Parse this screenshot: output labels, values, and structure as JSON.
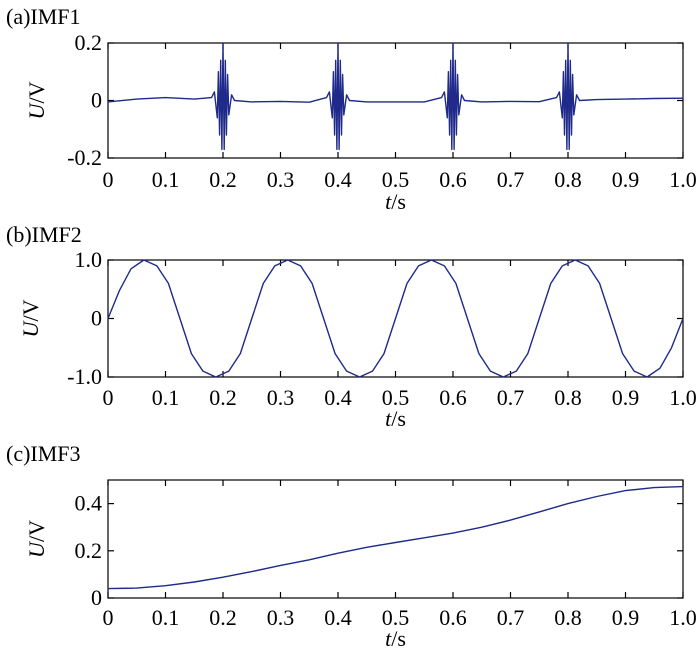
{
  "colors": {
    "line": "#1f2a8a",
    "axis": "#000000"
  },
  "chart_data": [
    {
      "type": "line",
      "panel_label": "(a)IMF1",
      "xlabel_italic": "t",
      "xlabel_unit": "/s",
      "ylabel_italic": "U",
      "ylabel_unit": "/V",
      "xlim": [
        0,
        1.0
      ],
      "ylim": [
        -0.2,
        0.2
      ],
      "xticks": [
        0,
        0.1,
        0.2,
        0.3,
        0.4,
        0.5,
        0.6,
        0.7,
        0.8,
        0.9,
        1.0
      ],
      "xtick_labels": [
        "0",
        "0.1",
        "0.2",
        "0.3",
        "0.4",
        "0.5",
        "0.6",
        "0.7",
        "0.8",
        "0.9",
        "1.0"
      ],
      "yticks": [
        -0.2,
        0,
        0.2
      ],
      "ytick_labels": [
        "-0.2",
        "0",
        "0.2"
      ],
      "grid": false,
      "series": [
        {
          "x": [
            0,
            0.05,
            0.1,
            0.15,
            0.18,
            0.185,
            0.19,
            0.192,
            0.194,
            0.196,
            0.198,
            0.2,
            0.202,
            0.204,
            0.206,
            0.208,
            0.21,
            0.215,
            0.22,
            0.25,
            0.3,
            0.35,
            0.38,
            0.385,
            0.39,
            0.392,
            0.394,
            0.396,
            0.398,
            0.4,
            0.402,
            0.404,
            0.406,
            0.408,
            0.41,
            0.415,
            0.42,
            0.45,
            0.5,
            0.55,
            0.58,
            0.585,
            0.59,
            0.592,
            0.594,
            0.596,
            0.598,
            0.6,
            0.602,
            0.604,
            0.606,
            0.608,
            0.61,
            0.615,
            0.62,
            0.65,
            0.7,
            0.75,
            0.78,
            0.785,
            0.79,
            0.792,
            0.794,
            0.796,
            0.798,
            0.8,
            0.802,
            0.804,
            0.806,
            0.808,
            0.81,
            0.815,
            0.82,
            0.85,
            0.9,
            0.95,
            1.0
          ],
          "y": [
            -0.005,
            0.005,
            0.01,
            0.005,
            0.01,
            0.03,
            -0.06,
            0.1,
            -0.12,
            0.14,
            -0.17,
            0.2,
            -0.17,
            0.14,
            -0.12,
            0.09,
            -0.05,
            0.02,
            0.0,
            -0.005,
            -0.003,
            -0.006,
            0.01,
            0.03,
            -0.06,
            0.1,
            -0.12,
            0.14,
            -0.17,
            0.2,
            -0.17,
            0.14,
            -0.12,
            0.09,
            -0.05,
            0.02,
            0.0,
            -0.005,
            -0.005,
            -0.005,
            0.01,
            0.03,
            -0.06,
            0.1,
            -0.12,
            0.14,
            -0.17,
            0.2,
            -0.17,
            0.14,
            -0.12,
            0.09,
            -0.05,
            0.02,
            0.0,
            -0.005,
            -0.003,
            -0.004,
            0.01,
            0.03,
            -0.06,
            0.1,
            -0.12,
            0.14,
            -0.17,
            0.2,
            -0.17,
            0.14,
            -0.12,
            0.09,
            -0.05,
            0.02,
            0.0,
            0.003,
            0.005,
            0.007,
            0.008
          ]
        }
      ]
    },
    {
      "type": "line",
      "panel_label": "(b)IMF2",
      "xlabel_italic": "t",
      "xlabel_unit": "/s",
      "ylabel_italic": "U",
      "ylabel_unit": "/V",
      "xlim": [
        0,
        1.0
      ],
      "ylim": [
        -1.0,
        1.0
      ],
      "xticks": [
        0,
        0.1,
        0.2,
        0.3,
        0.4,
        0.5,
        0.6,
        0.7,
        0.8,
        0.9,
        1.0
      ],
      "xtick_labels": [
        "0",
        "0.1",
        "0.2",
        "0.3",
        "0.4",
        "0.5",
        "0.6",
        "0.7",
        "0.8",
        "0.9",
        "1.0"
      ],
      "yticks": [
        -1.0,
        0,
        1.0
      ],
      "ytick_labels": [
        "-1.0",
        "0",
        "1.0"
      ],
      "grid": false,
      "series": [
        {
          "x": [
            0,
            0.02,
            0.04,
            0.0625,
            0.085,
            0.105,
            0.125,
            0.145,
            0.165,
            0.1875,
            0.21,
            0.23,
            0.25,
            0.27,
            0.29,
            0.3125,
            0.335,
            0.355,
            0.375,
            0.395,
            0.415,
            0.4375,
            0.46,
            0.48,
            0.5,
            0.52,
            0.54,
            0.5625,
            0.585,
            0.605,
            0.625,
            0.645,
            0.665,
            0.6875,
            0.71,
            0.73,
            0.75,
            0.77,
            0.79,
            0.8125,
            0.835,
            0.855,
            0.875,
            0.895,
            0.915,
            0.9375,
            0.96,
            0.98,
            1.0
          ],
          "y": [
            0,
            0.48,
            0.85,
            1.0,
            0.9,
            0.6,
            0.0,
            -0.6,
            -0.9,
            -1.0,
            -0.9,
            -0.6,
            0.0,
            0.6,
            0.9,
            1.0,
            0.9,
            0.6,
            0.0,
            -0.6,
            -0.9,
            -1.0,
            -0.9,
            -0.6,
            0.0,
            0.6,
            0.9,
            1.0,
            0.9,
            0.6,
            0.0,
            -0.6,
            -0.9,
            -1.0,
            -0.9,
            -0.6,
            0.0,
            0.6,
            0.9,
            1.0,
            0.9,
            0.6,
            0.0,
            -0.6,
            -0.9,
            -1.0,
            -0.85,
            -0.5,
            0.0
          ]
        }
      ]
    },
    {
      "type": "line",
      "panel_label": "(c)IMF3",
      "xlabel_italic": "t",
      "xlabel_unit": "/s",
      "ylabel_italic": "U",
      "ylabel_unit": "/V",
      "xlim": [
        0,
        1.0
      ],
      "ylim": [
        0,
        0.5
      ],
      "xticks": [
        0,
        0.1,
        0.2,
        0.3,
        0.4,
        0.5,
        0.6,
        0.7,
        0.8,
        0.9,
        1.0
      ],
      "xtick_labels": [
        "0",
        "0.1",
        "0.2",
        "0.3",
        "0.4",
        "0.5",
        "0.6",
        "0.7",
        "0.8",
        "0.9",
        "1.0"
      ],
      "yticks": [
        0,
        0.2,
        0.4
      ],
      "ytick_labels": [
        "0",
        "0.2",
        "0.4"
      ],
      "grid": false,
      "series": [
        {
          "x": [
            0,
            0.05,
            0.1,
            0.15,
            0.2,
            0.25,
            0.3,
            0.35,
            0.4,
            0.45,
            0.5,
            0.55,
            0.6,
            0.65,
            0.7,
            0.75,
            0.8,
            0.85,
            0.9,
            0.95,
            1.0
          ],
          "y": [
            0.04,
            0.042,
            0.052,
            0.068,
            0.088,
            0.112,
            0.138,
            0.162,
            0.19,
            0.215,
            0.235,
            0.255,
            0.275,
            0.3,
            0.33,
            0.365,
            0.4,
            0.43,
            0.455,
            0.468,
            0.472
          ]
        }
      ]
    }
  ]
}
